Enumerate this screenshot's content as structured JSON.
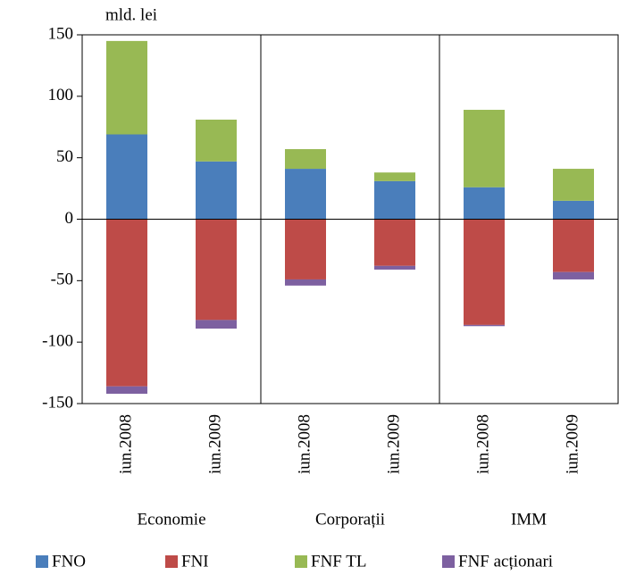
{
  "chart_data": {
    "type": "bar",
    "stacked": true,
    "y_label": "mld. lei",
    "categories": [
      "iun.2008",
      "iun.2009",
      "iun.2008",
      "iun.2009",
      "iun.2008",
      "iun.2009"
    ],
    "groups": [
      "Economie",
      "Corporații",
      "IMM"
    ],
    "series": [
      {
        "name": "FNO",
        "color": "#4a7ebb",
        "values": [
          69,
          47,
          41,
          31,
          26,
          15
        ]
      },
      {
        "name": "FNI",
        "color": "#be4b48",
        "values": [
          -136,
          -82,
          -49,
          -38,
          -86,
          -43
        ]
      },
      {
        "name": "FNF TL",
        "color": "#98b954",
        "values": [
          76,
          34,
          16,
          7,
          63,
          26
        ]
      },
      {
        "name": "FNF acționari",
        "color": "#7d60a0",
        "values": [
          -6,
          -7,
          -5,
          -3,
          -1,
          -6
        ]
      }
    ],
    "ylim": [
      -150,
      150
    ],
    "yticks": [
      -150,
      -100,
      -50,
      0,
      50,
      100,
      150
    ]
  }
}
